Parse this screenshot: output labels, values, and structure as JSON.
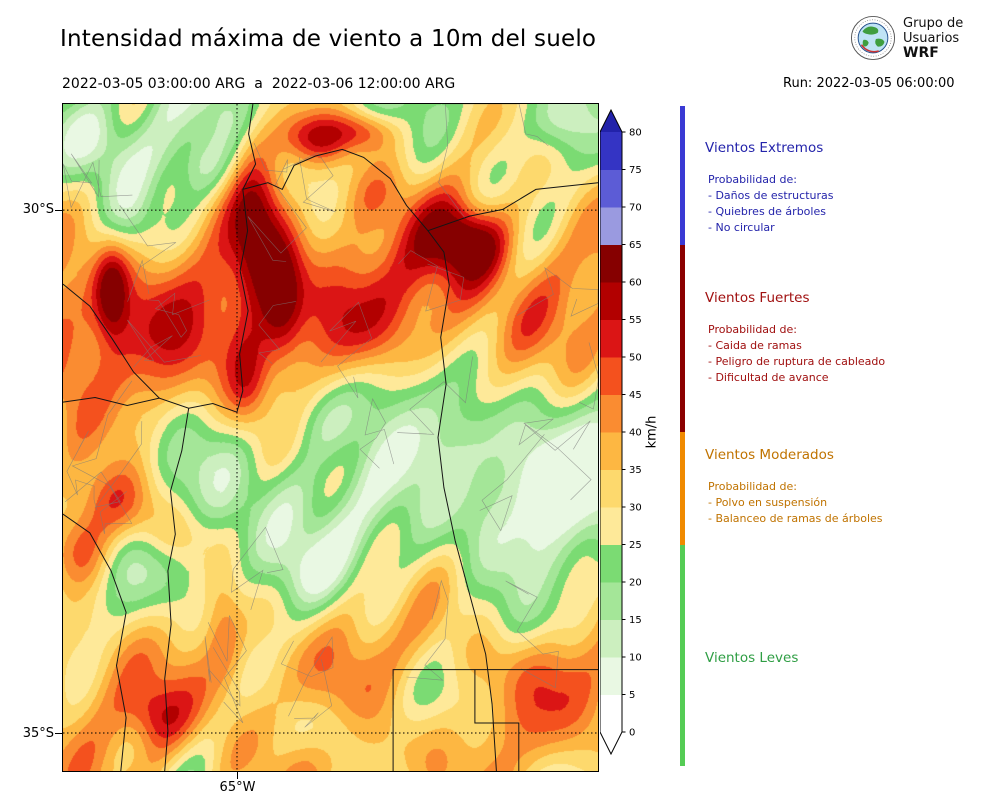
{
  "header": {
    "title": "Intensidad máxima de viento a 10m del suelo",
    "period_start": "2022-03-05 03:00:00 ARG",
    "period_separator": "a",
    "period_end": "2022-03-06 12:00:00 ARG",
    "run_label": "Run: 2022-03-05 06:00:00",
    "logo": {
      "line1": "Grupo de",
      "line2": "Usuarios",
      "line3": "WRF"
    }
  },
  "map": {
    "y_ticks": [
      "30°S",
      "35°S"
    ],
    "x_ticks": [
      "65°W"
    ]
  },
  "colorbar": {
    "unit": "km/h",
    "ticks": [
      0,
      5,
      10,
      15,
      20,
      25,
      30,
      35,
      40,
      45,
      50,
      55,
      60,
      65,
      70,
      75,
      80
    ],
    "under_color": "#ffffff",
    "levels": [
      {
        "from": 0,
        "to": 5,
        "color": "#ffffff"
      },
      {
        "from": 5,
        "to": 10,
        "color": "#e9f8e3"
      },
      {
        "from": 10,
        "to": 15,
        "color": "#ccefbf"
      },
      {
        "from": 15,
        "to": 20,
        "color": "#a4e698"
      },
      {
        "from": 20,
        "to": 25,
        "color": "#7bdb73"
      },
      {
        "from": 25,
        "to": 30,
        "color": "#fee999"
      },
      {
        "from": 30,
        "to": 35,
        "color": "#fdd96d"
      },
      {
        "from": 35,
        "to": 40,
        "color": "#fdb742"
      },
      {
        "from": 40,
        "to": 45,
        "color": "#fa8c31"
      },
      {
        "from": 45,
        "to": 50,
        "color": "#f4511e"
      },
      {
        "from": 50,
        "to": 55,
        "color": "#db1515"
      },
      {
        "from": 55,
        "to": 60,
        "color": "#b20000"
      },
      {
        "from": 60,
        "to": 65,
        "color": "#860000"
      },
      {
        "from": 65,
        "to": 70,
        "color": "#9a9ae0"
      },
      {
        "from": 70,
        "to": 75,
        "color": "#5c5cd6"
      },
      {
        "from": 75,
        "to": 80,
        "color": "#3434c4"
      },
      {
        "from": 80,
        "to": 85,
        "color": "#2222aa"
      }
    ]
  },
  "legend": {
    "categories": [
      {
        "name": "Vientos Extremos",
        "color": "#2424ab",
        "strip_color": "#3a3ad4",
        "prob_label": "Probabilidad de:",
        "items": [
          "- Daños de estructuras",
          "- Quiebres de árboles",
          "- No circular"
        ]
      },
      {
        "name": "Vientos Fuertes",
        "color": "#a01010",
        "strip_color": "#8b0000",
        "prob_label": "Probabilidad de:",
        "items": [
          "- Caida de ramas",
          "- Peligro de ruptura de cableado",
          "- Dificultad de avance"
        ]
      },
      {
        "name": "Vientos Moderados",
        "color": "#c07300",
        "strip_color": "#f08a00",
        "prob_label": "Probabilidad de:",
        "items": [
          "- Polvo en suspensión",
          "- Balanceo de ramas de árboles"
        ]
      },
      {
        "name": "Vientos Leves",
        "color": "#2f9e44",
        "strip_color": "#55cc55",
        "prob_label": "",
        "items": []
      }
    ]
  },
  "chart_data": {
    "type": "heatmap",
    "title": "Intensidad máxima de viento a 10m del suelo",
    "valid_from": "2022-03-05 03:00:00 ARG",
    "valid_to": "2022-03-06 12:00:00 ARG",
    "model_run": "Run: 2022-03-05 06:00:00",
    "unit": "km/h",
    "x_axis": {
      "label": "",
      "ticks": [
        "65°W"
      ]
    },
    "y_axis": {
      "label": "",
      "ticks": [
        "30°S",
        "35°S"
      ]
    },
    "colorbar_range": [
      0,
      80
    ],
    "colorbar_extended_above": true,
    "levels_kmh": [
      0,
      5,
      10,
      15,
      20,
      25,
      30,
      35,
      40,
      45,
      50,
      55,
      60,
      65,
      70,
      75,
      80
    ],
    "palette": [
      "#ffffff",
      "#e9f8e3",
      "#ccefbf",
      "#a4e698",
      "#7bdb73",
      "#fee999",
      "#fdd96d",
      "#fdb742",
      "#fa8c31",
      "#f4511e",
      "#db1515",
      "#b20000",
      "#860000",
      "#9a9ae0",
      "#5c5cd6",
      "#3434c4",
      "#2222aa"
    ],
    "wind_categories": [
      {
        "name": "Vientos Leves",
        "range_kmh": [
          0,
          25
        ],
        "color": "#55cc55"
      },
      {
        "name": "Vientos Moderados",
        "range_kmh": [
          25,
          45
        ],
        "color": "#f08a00"
      },
      {
        "name": "Vientos Fuertes",
        "range_kmh": [
          45,
          65
        ],
        "color": "#8b0000"
      },
      {
        "name": "Vientos Extremos",
        "range_kmh": [
          65,
          999
        ],
        "color": "#3a3ad4"
      }
    ],
    "observed_range_kmh": [
      5,
      65
    ],
    "notable_features": [
      "Banda de vientos fuertes (45-65 km/h) orientada N-S sobre el centro-oeste, cerca de 65°W, al norte de 32°S",
      "Núcleo de 45-65 km/h en el noreste del dominio, cerca de 30°S",
      "Área extensa de 45-65 km/h en el sudoeste del dominio",
      "Vientos leves (10-25 km/h) en el centro-este y en sectores del sur",
      "Fondo general de vientos moderados (25-45 km/h) en la mayor parte del dominio"
    ]
  }
}
